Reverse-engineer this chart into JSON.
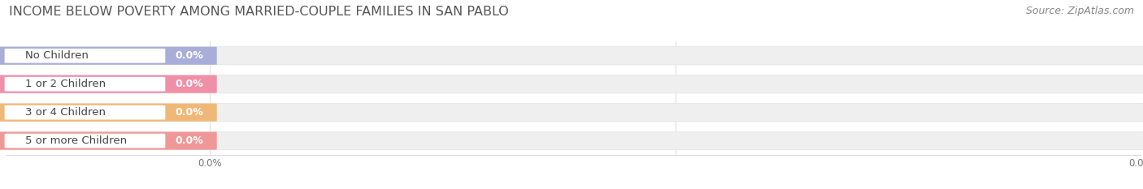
{
  "title": "INCOME BELOW POVERTY AMONG MARRIED-COUPLE FAMILIES IN SAN PABLO",
  "source": "Source: ZipAtlas.com",
  "categories": [
    "No Children",
    "1 or 2 Children",
    "3 or 4 Children",
    "5 or more Children"
  ],
  "values": [
    0.0,
    0.0,
    0.0,
    0.0
  ],
  "bar_colors": [
    "#a8aed8",
    "#f090a8",
    "#f0b878",
    "#f09898"
  ],
  "background_color": "#ffffff",
  "bar_bg_color": "#efefef",
  "bar_bg_edge": "#e2e2e2",
  "xlim_data": [
    0.0,
    1.0
  ],
  "x_axis_pos": 0.18,
  "bar_height": 0.62,
  "title_fontsize": 11.5,
  "label_fontsize": 9.5,
  "value_fontsize": 9,
  "source_fontsize": 9,
  "tick_label_fontsize": 8.5
}
